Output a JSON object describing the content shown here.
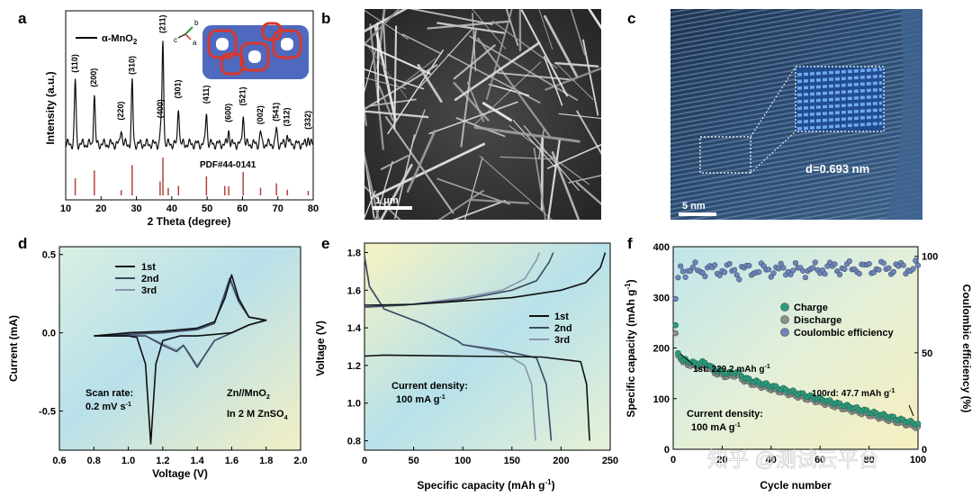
{
  "panels": {
    "a": {
      "letter": "a",
      "legend": "α-MnO",
      "legend_sub": "2",
      "ylabel": "Intensity (a.u.)",
      "xlabel": "2 Theta (degree)",
      "pdf": "PDF#44-0141",
      "axes_label": {
        "b": "b",
        "c": "c",
        "a": "a"
      }
    },
    "b": {
      "letter": "b",
      "scale": "1 μm"
    },
    "c": {
      "letter": "c",
      "scale": "5 nm",
      "d_spacing": "d=0.693 nm"
    },
    "d": {
      "letter": "d",
      "scan_rate_1": "Scan rate:",
      "scan_rate_2": "0.2 mV s",
      "scan_rate_sup": "-1",
      "cell_1": "Zn//MnO",
      "cell_1_sub": "2",
      "cell_2": "In 2 M ZnSO",
      "cell_2_sub": "4"
    },
    "e": {
      "letter": "e",
      "density_1": "Current density:",
      "density_2": "100 mA g",
      "density_sup": "-1"
    },
    "f": {
      "letter": "f",
      "annot_first": "1st: 229.2 mAh g",
      "annot_last": "100rd: 47.7 mAh g",
      "annot_sup": "-1",
      "density_1": "Current density:",
      "density_2": "100 mA g",
      "density_sup": "-1"
    }
  },
  "watermark": "知乎 @测试云平台",
  "chart_data": [
    {
      "panel": "a",
      "type": "line",
      "title": "",
      "xlabel": "2 Theta (degree)",
      "ylabel": "Intensity (a.u.)",
      "xlim": [
        10,
        80
      ],
      "x_ticks": [
        10,
        20,
        30,
        40,
        50,
        60,
        70,
        80
      ],
      "series": [
        {
          "name": "α-MnO2",
          "peaks": [
            {
              "label": "(110)",
              "x": 12.7,
              "h": 0.62
            },
            {
              "label": "(200)",
              "x": 18.1,
              "h": 0.48
            },
            {
              "label": "(220)",
              "x": 25.7,
              "h": 0.16
            },
            {
              "label": "(310)",
              "x": 28.8,
              "h": 0.6
            },
            {
              "label": "(400)",
              "x": 36.9,
              "h": 0.18
            },
            {
              "label": "(211)",
              "x": 37.5,
              "h": 1.0
            },
            {
              "label": "(301)",
              "x": 41.9,
              "h": 0.37
            },
            {
              "label": "(411)",
              "x": 49.8,
              "h": 0.32
            },
            {
              "label": "(600)",
              "x": 56.1,
              "h": 0.14
            },
            {
              "label": "(521)",
              "x": 60.2,
              "h": 0.3
            },
            {
              "label": "(002)",
              "x": 65.1,
              "h": 0.12
            },
            {
              "label": "(541)",
              "x": 69.6,
              "h": 0.15
            },
            {
              "label": "(312)",
              "x": 72.7,
              "h": 0.1
            },
            {
              "label": "(332)",
              "x": 78.6,
              "h": 0.07
            }
          ]
        },
        {
          "name": "PDF#44-0141",
          "sticks": [
            [
              12.7,
              0.45
            ],
            [
              18.1,
              0.66
            ],
            [
              25.7,
              0.14
            ],
            [
              28.8,
              0.8
            ],
            [
              36.7,
              0.37
            ],
            [
              37.5,
              1.0
            ],
            [
              39.0,
              0.2
            ],
            [
              41.9,
              0.25
            ],
            [
              49.8,
              0.5
            ],
            [
              55.0,
              0.25
            ],
            [
              56.1,
              0.24
            ],
            [
              60.2,
              0.62
            ],
            [
              65.1,
              0.2
            ],
            [
              69.6,
              0.32
            ],
            [
              72.7,
              0.15
            ],
            [
              78.6,
              0.12
            ]
          ]
        }
      ]
    },
    {
      "panel": "d",
      "type": "line",
      "title": "",
      "xlabel": "Voltage (V)",
      "ylabel": "Current (mA)",
      "xlim": [
        0.6,
        2.0
      ],
      "ylim": [
        -0.75,
        0.55
      ],
      "x_ticks": [
        0.6,
        0.8,
        1.0,
        1.2,
        1.4,
        1.6,
        1.8,
        2.0
      ],
      "y_ticks": [
        -0.5,
        0.0,
        0.5
      ],
      "series": [
        {
          "name": "1st",
          "color": "#111111",
          "points": [
            [
              0.8,
              -0.02
            ],
            [
              1.0,
              -0.02
            ],
            [
              1.05,
              -0.03
            ],
            [
              1.1,
              -0.2
            ],
            [
              1.13,
              -0.71
            ],
            [
              1.16,
              -0.2
            ],
            [
              1.2,
              -0.05
            ],
            [
              1.3,
              -0.02
            ],
            [
              1.4,
              -0.02
            ],
            [
              1.5,
              -0.01
            ],
            [
              1.6,
              0.0
            ],
            [
              1.7,
              0.05
            ],
            [
              1.8,
              0.08
            ],
            [
              1.7,
              0.1
            ],
            [
              1.64,
              0.22
            ],
            [
              1.6,
              0.37
            ],
            [
              1.56,
              0.22
            ],
            [
              1.5,
              0.07
            ],
            [
              1.4,
              0.03
            ],
            [
              1.2,
              0.01
            ],
            [
              1.0,
              0.0
            ],
            [
              0.8,
              -0.02
            ]
          ]
        },
        {
          "name": "2nd",
          "color": "#3a4a64",
          "points": [
            [
              0.8,
              -0.02
            ],
            [
              1.1,
              -0.02
            ],
            [
              1.2,
              -0.08
            ],
            [
              1.28,
              -0.12
            ],
            [
              1.32,
              -0.08
            ],
            [
              1.36,
              -0.15
            ],
            [
              1.4,
              -0.22
            ],
            [
              1.44,
              -0.15
            ],
            [
              1.5,
              -0.05
            ],
            [
              1.6,
              0.0
            ],
            [
              1.7,
              0.05
            ],
            [
              1.8,
              0.08
            ],
            [
              1.7,
              0.1
            ],
            [
              1.64,
              0.2
            ],
            [
              1.59,
              0.35
            ],
            [
              1.55,
              0.22
            ],
            [
              1.5,
              0.06
            ],
            [
              1.4,
              0.02
            ],
            [
              1.2,
              0.0
            ],
            [
              0.8,
              -0.02
            ]
          ]
        },
        {
          "name": "3rd",
          "color": "#8a97ad",
          "points": [
            [
              0.8,
              -0.02
            ],
            [
              1.1,
              -0.02
            ],
            [
              1.2,
              -0.07
            ],
            [
              1.28,
              -0.11
            ],
            [
              1.32,
              -0.08
            ],
            [
              1.36,
              -0.14
            ],
            [
              1.4,
              -0.21
            ],
            [
              1.44,
              -0.15
            ],
            [
              1.5,
              -0.05
            ],
            [
              1.6,
              0.0
            ],
            [
              1.7,
              0.05
            ],
            [
              1.8,
              0.08
            ],
            [
              1.7,
              0.1
            ],
            [
              1.64,
              0.2
            ],
            [
              1.59,
              0.33
            ],
            [
              1.55,
              0.22
            ],
            [
              1.5,
              0.06
            ],
            [
              1.4,
              0.02
            ],
            [
              1.2,
              0.0
            ],
            [
              0.8,
              -0.02
            ]
          ]
        }
      ]
    },
    {
      "panel": "e",
      "type": "line",
      "title": "",
      "xlabel": "Specific capacity (mAh g-1)",
      "ylabel": "Voltage (V)",
      "xlim": [
        0,
        250
      ],
      "ylim": [
        0.75,
        1.85
      ],
      "x_ticks": [
        0,
        50,
        100,
        150,
        200,
        250
      ],
      "y_ticks": [
        0.8,
        1.0,
        1.2,
        1.4,
        1.6,
        1.8
      ],
      "series": [
        {
          "name": "1st",
          "color": "#111111",
          "discharge": [
            [
              0,
              1.25
            ],
            [
              20,
              1.255
            ],
            [
              100,
              1.25
            ],
            [
              180,
              1.245
            ],
            [
              220,
              1.22
            ],
            [
              226,
              1.1
            ],
            [
              229,
              0.8
            ]
          ],
          "charge": [
            [
              0,
              1.52
            ],
            [
              50,
              1.525
            ],
            [
              150,
              1.56
            ],
            [
              200,
              1.6
            ],
            [
              225,
              1.64
            ],
            [
              240,
              1.72
            ],
            [
              245,
              1.8
            ]
          ]
        },
        {
          "name": "2nd",
          "color": "#3a4a64",
          "discharge": [
            [
              0,
              1.78
            ],
            [
              5,
              1.62
            ],
            [
              20,
              1.5
            ],
            [
              60,
              1.42
            ],
            [
              95,
              1.33
            ],
            [
              100,
              1.31
            ],
            [
              140,
              1.28
            ],
            [
              175,
              1.24
            ],
            [
              185,
              1.1
            ],
            [
              190,
              0.8
            ]
          ],
          "charge": [
            [
              0,
              1.51
            ],
            [
              40,
              1.52
            ],
            [
              100,
              1.55
            ],
            [
              150,
              1.6
            ],
            [
              175,
              1.65
            ],
            [
              188,
              1.75
            ],
            [
              192,
              1.8
            ]
          ]
        },
        {
          "name": "3rd",
          "color": "#8a97ad",
          "discharge": [
            [
              0,
              1.78
            ],
            [
              5,
              1.62
            ],
            [
              20,
              1.5
            ],
            [
              60,
              1.42
            ],
            [
              95,
              1.33
            ],
            [
              100,
              1.31
            ],
            [
              140,
              1.27
            ],
            [
              163,
              1.2
            ],
            [
              170,
              1.1
            ],
            [
              174,
              0.8
            ]
          ],
          "charge": [
            [
              0,
              1.51
            ],
            [
              40,
              1.52
            ],
            [
              100,
              1.56
            ],
            [
              140,
              1.6
            ],
            [
              163,
              1.66
            ],
            [
              175,
              1.76
            ],
            [
              178,
              1.8
            ]
          ]
        }
      ]
    },
    {
      "panel": "f",
      "type": "scatter",
      "title": "",
      "xlabel": "Cycle number",
      "ylabel": "Specific capacity (mAh g-1)",
      "y2label": "Coulombic efficiency (%)",
      "xlim": [
        0,
        100
      ],
      "ylim": [
        0,
        400
      ],
      "y2lim": [
        0,
        105
      ],
      "x_ticks": [
        0,
        20,
        40,
        60,
        80,
        100
      ],
      "y_ticks": [
        0,
        100,
        200,
        300,
        400
      ],
      "y2_ticks": [
        0,
        50,
        100
      ],
      "series": [
        {
          "name": "Charge",
          "color": "#2f9a7c"
        },
        {
          "name": "Discharge",
          "color": "#8f8f8f"
        },
        {
          "name": "Coulombic efficiency",
          "color": "#6f86b8"
        }
      ],
      "charge_start": [
        [
          1,
          245
        ],
        [
          2,
          190
        ],
        [
          3,
          182
        ],
        [
          4,
          176
        ]
      ],
      "discharge_start": [
        [
          1,
          229.2
        ],
        [
          2,
          185
        ],
        [
          3,
          178
        ],
        [
          4,
          172
        ]
      ],
      "bumps": [
        [
          13,
          160
        ],
        [
          26,
          158
        ]
      ],
      "final_capacity": 47.7
    }
  ]
}
